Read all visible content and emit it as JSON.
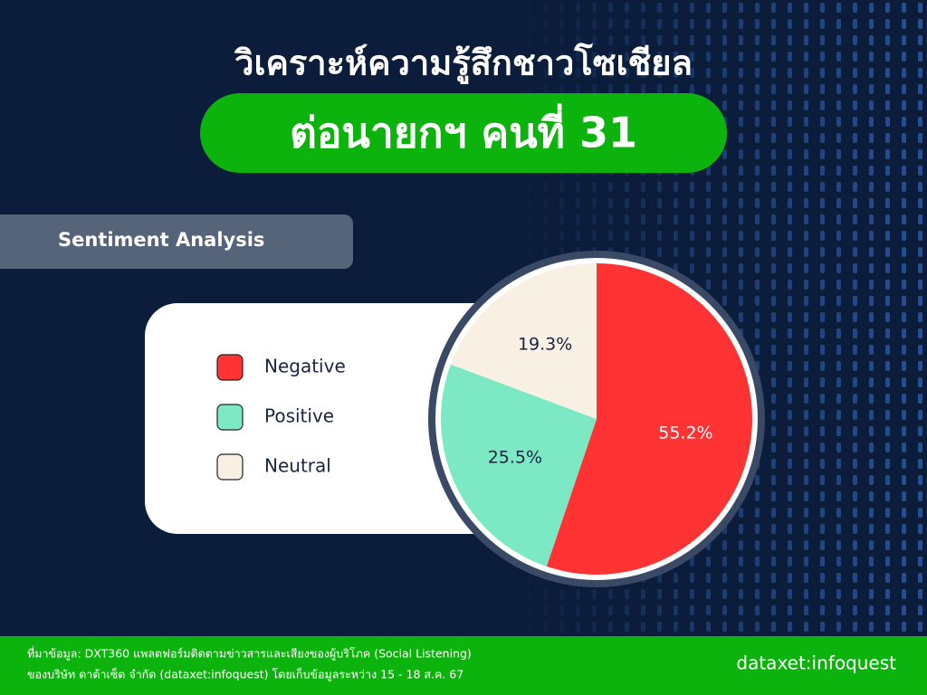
{
  "chart_data": {
    "type": "pie",
    "title": "วิเคราะห์ความรู้สึกชาวโซเชียล",
    "subtitle": "ต่อนายกฯ คนที่ 31",
    "section_label": "Sentiment Analysis",
    "categories": [
      "Negative",
      "Positive",
      "Neutral"
    ],
    "values": [
      55.2,
      25.5,
      19.3
    ],
    "value_labels": [
      "55.2%",
      "25.5%",
      "19.3%"
    ],
    "colors": [
      "#ff3333",
      "#7de8c4",
      "#f8f1e3"
    ],
    "legend": "left",
    "source": [
      "ที่มาข้อมูล: DXT360 แพลตฟอร์มติดตามข่าวสารและเสียงของผู้บริโภค (Social Listening)",
      "ของบริษัท ดาต้าเซ็ต จำกัด (dataxet:infoquest) โดยเก็บข้อมูลระหว่าง 15 - 18 ส.ค. 67"
    ],
    "logo": "dataxet:infoquest"
  }
}
